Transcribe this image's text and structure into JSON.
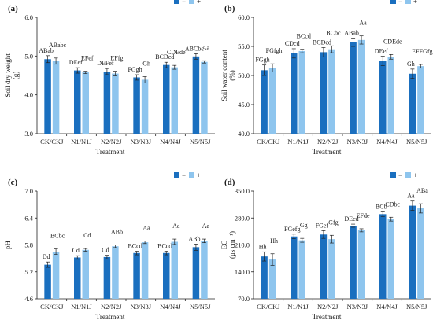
{
  "colors": {
    "minus": "#1a6fbf",
    "plus": "#8ec5ee",
    "axis": "#222222"
  },
  "chart_data": [
    {
      "type": "bar",
      "panel_label": "(a)",
      "categories": [
        "CK/CKJ",
        "N1/N1J",
        "N2/N2J",
        "N3/N3J",
        "N4/N4J",
        "N5/N5J"
      ],
      "xlabel": "Treatment",
      "ylabel": "Soil dry weight (g)",
      "ylabel_lines": [
        "Soil dry weight",
        "(g)"
      ],
      "ylim": [
        3.0,
        6.0
      ],
      "yticks": [
        "3.0",
        "4.0",
        "5.0",
        "6.0"
      ],
      "legend": {
        "position": "top-right",
        "labels": [
          "−",
          "+"
        ]
      },
      "series": [
        {
          "name": "−",
          "values": [
            4.92,
            4.63,
            4.6,
            4.45,
            4.77,
            4.99
          ],
          "errors": [
            0.09,
            0.07,
            0.08,
            0.07,
            0.07,
            0.07
          ],
          "labels": [
            "ABab",
            "DEef",
            "DEFef",
            "FGgh",
            "BCDcd",
            "ABCbc"
          ]
        },
        {
          "name": "+",
          "values": [
            4.87,
            4.58,
            4.55,
            4.39,
            4.71,
            4.85
          ],
          "errors": [
            0.08,
            0.03,
            0.06,
            0.08,
            0.05,
            0.03
          ],
          "labels": [
            "ABabc",
            "EFef",
            "EFfg",
            "Gh",
            "CDEde",
            "Aa"
          ]
        }
      ]
    },
    {
      "type": "bar",
      "panel_label": "(b)",
      "categories": [
        "CK/CKJ",
        "N1/N1J",
        "N2/N2J",
        "N3/N3J",
        "N4/N4J",
        "N5/N5J"
      ],
      "xlabel": "Treatment",
      "ylabel": "Soil water content (%)",
      "ylabel_lines": [
        "Soil water content",
        "(%)"
      ],
      "ylim": [
        40.0,
        60.0
      ],
      "yticks": [
        "40.0",
        "45.0",
        "50.0",
        "55.0",
        "60.0"
      ],
      "legend": {
        "position": "top-right",
        "labels": [
          "−",
          "+"
        ]
      },
      "series": [
        {
          "name": "−",
          "values": [
            50.9,
            53.8,
            54.0,
            55.7,
            52.5,
            50.3
          ],
          "errors": [
            0.9,
            0.8,
            0.8,
            0.7,
            0.8,
            0.8
          ],
          "labels": [
            "FGgh",
            "CDcd",
            "BCDcd",
            "ABab",
            "DEef",
            "Gh"
          ]
        },
        {
          "name": "+",
          "values": [
            51.3,
            54.2,
            54.5,
            56.1,
            53.2,
            51.6
          ],
          "errors": [
            0.7,
            0.3,
            0.6,
            0.7,
            0.4,
            0.3
          ],
          "labels": [
            "FGfgh",
            "BCcd",
            "BCbc",
            "Aa",
            "CDEde",
            "EFFGfg"
          ]
        }
      ]
    },
    {
      "type": "bar",
      "panel_label": "(c)",
      "categories": [
        "CK/CKJ",
        "N1/N1J",
        "N2/N2J",
        "N3/N3J",
        "N4/N4J",
        "N5/N5J"
      ],
      "xlabel": "Treatment",
      "ylabel": "pH",
      "ylabel_lines": [
        "pH"
      ],
      "ylim": [
        4.6,
        7.0
      ],
      "yticks": [
        "4.6",
        "5.2",
        "5.8",
        "6.4",
        "7.0"
      ],
      "legend": {
        "position": "top-right",
        "labels": [
          "−",
          "+"
        ]
      },
      "series": [
        {
          "name": "−",
          "values": [
            5.36,
            5.52,
            5.53,
            5.62,
            5.62,
            5.75
          ],
          "errors": [
            0.06,
            0.04,
            0.04,
            0.04,
            0.04,
            0.07
          ],
          "labels": [
            "Dd",
            "Cd",
            "Cd",
            "BCcd",
            "BCcd",
            "ABb"
          ]
        },
        {
          "name": "+",
          "values": [
            5.65,
            5.69,
            5.77,
            5.86,
            5.87,
            5.89
          ],
          "errors": [
            0.06,
            0.03,
            0.03,
            0.03,
            0.06,
            0.04
          ],
          "labels": [
            "BCbc",
            "Cd",
            "ABb",
            "Aa",
            "Aa",
            "Aa"
          ]
        }
      ]
    },
    {
      "type": "bar",
      "panel_label": "(d)",
      "categories": [
        "CK/CKJ",
        "N1/N1J",
        "N2/N2J",
        "N3/N3J",
        "N4/N4J",
        "N5/N5J"
      ],
      "xlabel": "Treatment",
      "ylabel": "EC (μs cm⁻¹)",
      "ylabel_lines": [
        "EC",
        "(μs cm⁻¹)"
      ],
      "ylim": [
        70,
        350
      ],
      "yticks": [
        "70.0",
        "140.0",
        "210.0",
        "280.0",
        "350.0"
      ],
      "legend": {
        "position": "top-right",
        "labels": [
          "−",
          "+"
        ]
      },
      "series": [
        {
          "name": "−",
          "values": [
            180,
            232,
            237,
            260,
            290,
            312
          ],
          "errors": [
            12,
            6,
            10,
            4,
            6,
            12
          ],
          "labels": [
            "Hh",
            "FGefg",
            "FGef",
            "DEcd",
            "BCb",
            "Aa"
          ]
        },
        {
          "name": "+",
          "values": [
            172,
            222,
            225,
            248,
            277,
            305
          ],
          "errors": [
            15,
            5,
            10,
            4,
            5,
            12
          ],
          "labels": [
            "Hh",
            "Gg",
            "Gfg",
            "EFde",
            "CDbc",
            "ABa"
          ]
        }
      ]
    }
  ]
}
